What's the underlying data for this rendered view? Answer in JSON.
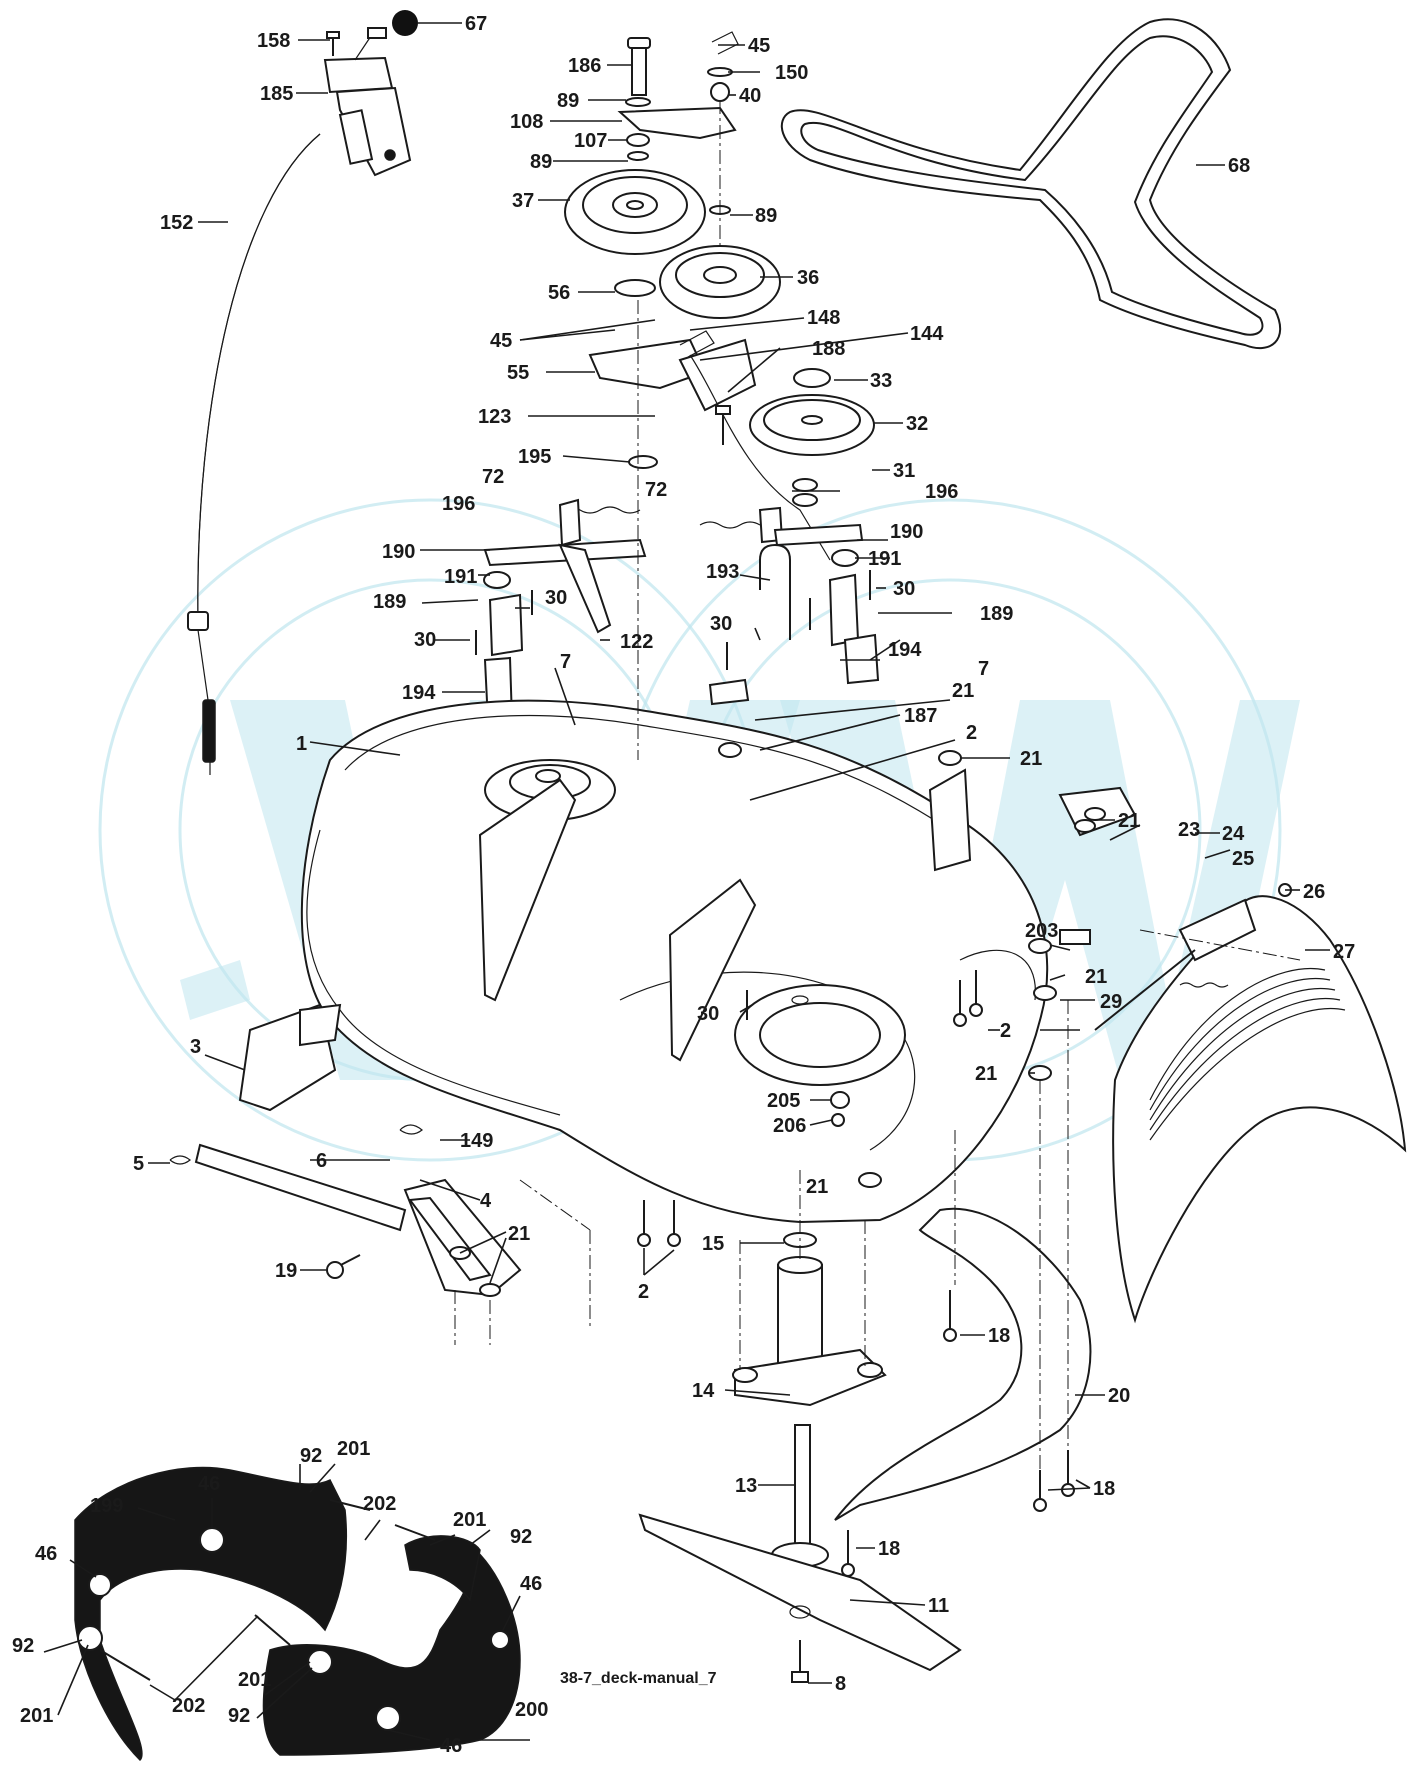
{
  "drawing_id": "38-7_deck-manual_7",
  "callouts": [
    {
      "n": "158"
    },
    {
      "n": "67"
    },
    {
      "n": "185"
    },
    {
      "n": "152"
    },
    {
      "n": "186"
    },
    {
      "n": "89"
    },
    {
      "n": "108"
    },
    {
      "n": "107"
    },
    {
      "n": "89"
    },
    {
      "n": "37"
    },
    {
      "n": "45"
    },
    {
      "n": "150"
    },
    {
      "n": "40"
    },
    {
      "n": "89"
    },
    {
      "n": "36"
    },
    {
      "n": "68"
    },
    {
      "n": "56"
    },
    {
      "n": "148"
    },
    {
      "n": "45"
    },
    {
      "n": "144"
    },
    {
      "n": "55"
    },
    {
      "n": "188"
    },
    {
      "n": "33"
    },
    {
      "n": "123"
    },
    {
      "n": "32"
    },
    {
      "n": "195"
    },
    {
      "n": "31"
    },
    {
      "n": "72"
    },
    {
      "n": "196"
    },
    {
      "n": "196"
    },
    {
      "n": "72"
    },
    {
      "n": "190"
    },
    {
      "n": "190"
    },
    {
      "n": "191"
    },
    {
      "n": "193"
    },
    {
      "n": "191"
    },
    {
      "n": "30"
    },
    {
      "n": "189"
    },
    {
      "n": "30"
    },
    {
      "n": "30"
    },
    {
      "n": "189"
    },
    {
      "n": "30"
    },
    {
      "n": "122"
    },
    {
      "n": "194"
    },
    {
      "n": "7"
    },
    {
      "n": "194"
    },
    {
      "n": "7"
    },
    {
      "n": "21"
    },
    {
      "n": "187"
    },
    {
      "n": "1"
    },
    {
      "n": "2"
    },
    {
      "n": "21"
    },
    {
      "n": "21"
    },
    {
      "n": "23"
    },
    {
      "n": "24"
    },
    {
      "n": "25"
    },
    {
      "n": "26"
    },
    {
      "n": "27"
    },
    {
      "n": "203"
    },
    {
      "n": "21"
    },
    {
      "n": "29"
    },
    {
      "n": "30"
    },
    {
      "n": "2"
    },
    {
      "n": "3"
    },
    {
      "n": "21"
    },
    {
      "n": "205"
    },
    {
      "n": "206"
    },
    {
      "n": "149"
    },
    {
      "n": "5"
    },
    {
      "n": "6"
    },
    {
      "n": "4"
    },
    {
      "n": "21"
    },
    {
      "n": "21"
    },
    {
      "n": "19"
    },
    {
      "n": "15"
    },
    {
      "n": "2"
    },
    {
      "n": "18"
    },
    {
      "n": "14"
    },
    {
      "n": "20"
    },
    {
      "n": "13"
    },
    {
      "n": "18"
    },
    {
      "n": "18"
    },
    {
      "n": "11"
    },
    {
      "n": "8"
    },
    {
      "n": "92"
    },
    {
      "n": "201"
    },
    {
      "n": "46"
    },
    {
      "n": "199"
    },
    {
      "n": "202"
    },
    {
      "n": "201"
    },
    {
      "n": "92"
    },
    {
      "n": "46"
    },
    {
      "n": "46"
    },
    {
      "n": "92"
    },
    {
      "n": "201"
    },
    {
      "n": "202"
    },
    {
      "n": "201"
    },
    {
      "n": "92"
    },
    {
      "n": "200"
    },
    {
      "n": "46"
    }
  ]
}
